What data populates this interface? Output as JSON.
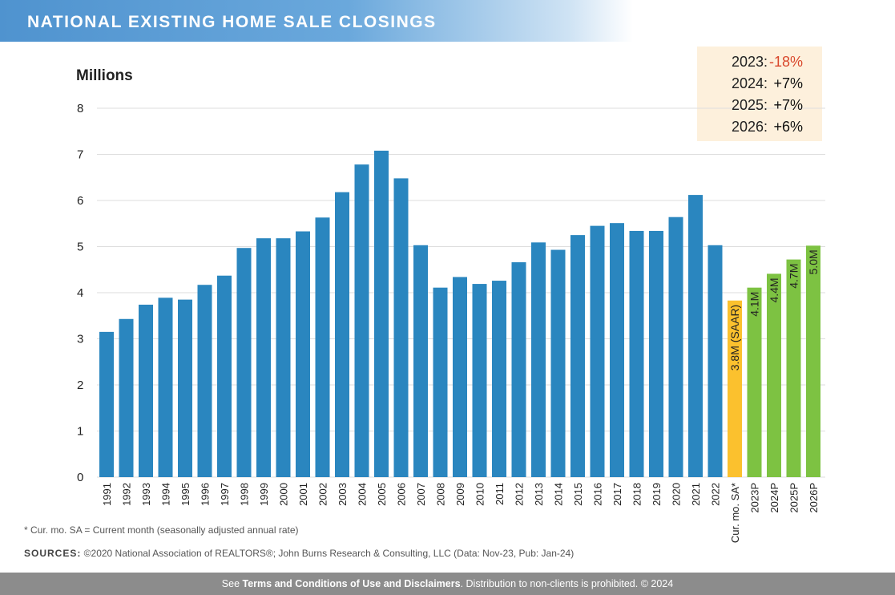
{
  "header": {
    "title": "NATIONAL EXISTING HOME SALE CLOSINGS"
  },
  "chart_data": {
    "type": "bar",
    "y_label": "Millions",
    "categories": [
      "1991",
      "1992",
      "1993",
      "1994",
      "1995",
      "1996",
      "1997",
      "1998",
      "1999",
      "2000",
      "2001",
      "2002",
      "2003",
      "2004",
      "2005",
      "2006",
      "2007",
      "2008",
      "2009",
      "2010",
      "2011",
      "2012",
      "2013",
      "2014",
      "2015",
      "2016",
      "2017",
      "2018",
      "2019",
      "2020",
      "2021",
      "2022",
      "Cur. mo. SA*",
      "2023P",
      "2024P",
      "2025P",
      "2026P"
    ],
    "values": [
      3.15,
      3.43,
      3.74,
      3.89,
      3.85,
      4.17,
      4.37,
      4.97,
      5.18,
      5.18,
      5.33,
      5.63,
      6.18,
      6.78,
      7.08,
      6.48,
      5.03,
      4.11,
      4.34,
      4.19,
      4.26,
      4.66,
      5.09,
      4.93,
      5.25,
      5.45,
      5.51,
      5.34,
      5.34,
      5.64,
      6.12,
      5.03,
      3.83,
      4.11,
      4.41,
      4.72,
      5.02
    ],
    "value_labels": [
      null,
      null,
      null,
      null,
      null,
      null,
      null,
      null,
      null,
      null,
      null,
      null,
      null,
      null,
      null,
      null,
      null,
      null,
      null,
      null,
      null,
      null,
      null,
      null,
      null,
      null,
      null,
      null,
      null,
      null,
      null,
      null,
      "3.8M (SAAR)",
      "4.1M",
      "4.4M",
      "4.7M",
      "5.0M"
    ],
    "colors": [
      "#2a86bf",
      "#2a86bf",
      "#2a86bf",
      "#2a86bf",
      "#2a86bf",
      "#2a86bf",
      "#2a86bf",
      "#2a86bf",
      "#2a86bf",
      "#2a86bf",
      "#2a86bf",
      "#2a86bf",
      "#2a86bf",
      "#2a86bf",
      "#2a86bf",
      "#2a86bf",
      "#2a86bf",
      "#2a86bf",
      "#2a86bf",
      "#2a86bf",
      "#2a86bf",
      "#2a86bf",
      "#2a86bf",
      "#2a86bf",
      "#2a86bf",
      "#2a86bf",
      "#2a86bf",
      "#2a86bf",
      "#2a86bf",
      "#2a86bf",
      "#2a86bf",
      "#2a86bf",
      "#fbc12e",
      "#7dc242",
      "#7dc242",
      "#7dc242",
      "#7dc242"
    ],
    "ylim": [
      0,
      8
    ],
    "yticks": [
      0,
      1,
      2,
      3,
      4,
      5,
      6,
      7,
      8
    ],
    "grid": true,
    "annotations": [
      {
        "year": "2023:",
        "change": "-18%",
        "color": "#d9472b"
      },
      {
        "year": "2024:",
        "change": "+7%",
        "color": "#111111"
      },
      {
        "year": "2025:",
        "change": "+7%",
        "color": "#111111"
      },
      {
        "year": "2026:",
        "change": "+6%",
        "color": "#111111"
      }
    ]
  },
  "footnote": "* Cur. mo. SA = Current month (seasonally adjusted annual rate)",
  "sources": {
    "label": "SOURCES:",
    "text": " ©2020 National Association of REALTORS®; John Burns Research & Consulting, LLC (Data: Nov-23, Pub: Jan-24)"
  },
  "footer": {
    "pre": "See ",
    "bold": "Terms and Conditions of Use and Disclaimers",
    "post": ". Distribution to non-clients is prohibited. © 2024"
  }
}
